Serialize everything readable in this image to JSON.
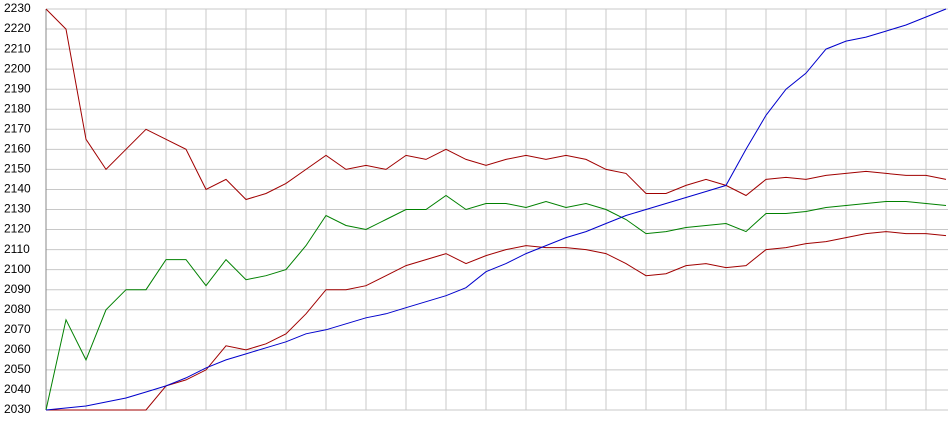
{
  "chart_data": {
    "type": "line",
    "ylim": [
      2030,
      2230
    ],
    "yticks": [
      2030,
      2040,
      2050,
      2060,
      2070,
      2080,
      2090,
      2100,
      2110,
      2120,
      2130,
      2140,
      2150,
      2160,
      2170,
      2180,
      2190,
      2200,
      2210,
      2220,
      2230
    ],
    "grid": true,
    "series": [
      {
        "color": "#a00000",
        "values": [
          2230,
          2220,
          2165,
          2150,
          2160,
          2170,
          2165,
          2160,
          2140,
          2145,
          2135,
          2138,
          2143,
          2150,
          2157,
          2150,
          2152,
          2150,
          2157,
          2155,
          2160,
          2155,
          2152,
          2155,
          2157,
          2155,
          2157,
          2155,
          2150,
          2148,
          2138,
          2138,
          2142,
          2145,
          2142,
          2137,
          2145,
          2146,
          2145,
          2147,
          2148,
          2149,
          2148,
          2147,
          2147,
          2145
        ]
      },
      {
        "color": "#008000",
        "values": [
          2030,
          2075,
          2055,
          2080,
          2090,
          2090,
          2105,
          2105,
          2092,
          2105,
          2095,
          2097,
          2100,
          2112,
          2127,
          2122,
          2120,
          2125,
          2130,
          2130,
          2137,
          2130,
          2133,
          2133,
          2131,
          2134,
          2131,
          2133,
          2130,
          2125,
          2118,
          2119,
          2121,
          2122,
          2123,
          2119,
          2128,
          2128,
          2129,
          2131,
          2132,
          2133,
          2134,
          2134,
          2133,
          2132
        ]
      },
      {
        "color": "#a00000",
        "values": [
          2030,
          2030,
          2030,
          2030,
          2030,
          2030,
          2042,
          2045,
          2050,
          2062,
          2060,
          2063,
          2068,
          2078,
          2090,
          2090,
          2092,
          2097,
          2102,
          2105,
          2108,
          2103,
          2107,
          2110,
          2112,
          2111,
          2111,
          2110,
          2108,
          2103,
          2097,
          2098,
          2102,
          2103,
          2101,
          2102,
          2110,
          2111,
          2113,
          2114,
          2116,
          2118,
          2119,
          2118,
          2118,
          2117
        ]
      },
      {
        "color": "#0000cc",
        "values": [
          2030,
          2031,
          2032,
          2034,
          2036,
          2039,
          2042,
          2046,
          2051,
          2055,
          2058,
          2061,
          2064,
          2068,
          2070,
          2073,
          2076,
          2078,
          2081,
          2084,
          2087,
          2091,
          2099,
          2103,
          2108,
          2112,
          2116,
          2119,
          2123,
          2127,
          2130,
          2133,
          2136,
          2139,
          2142,
          2160,
          2177,
          2190,
          2198,
          2210,
          2214,
          2216,
          2219,
          2222,
          2226,
          2230
        ]
      }
    ]
  }
}
